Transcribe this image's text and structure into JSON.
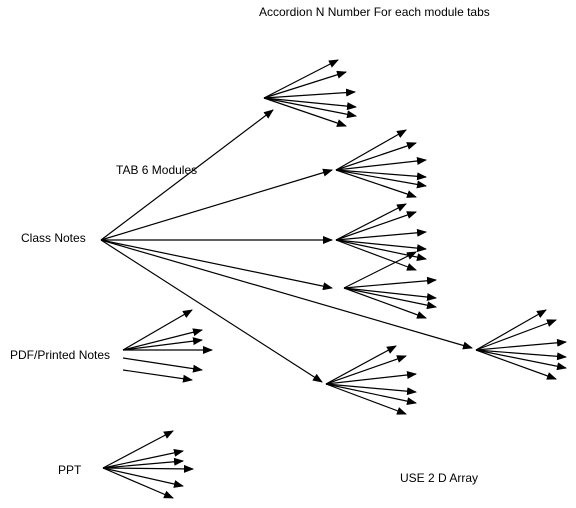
{
  "labels": {
    "title": "Accordion N Number For each module tabs",
    "tab_modules": "TAB 6 Modules",
    "class_notes": "Class Notes",
    "pdf_notes": "PDF/Printed Notes",
    "ppt": "PPT",
    "array_note": "USE 2 D Array"
  },
  "colors": {
    "stroke": "#000000",
    "background": "#ffffff"
  }
}
